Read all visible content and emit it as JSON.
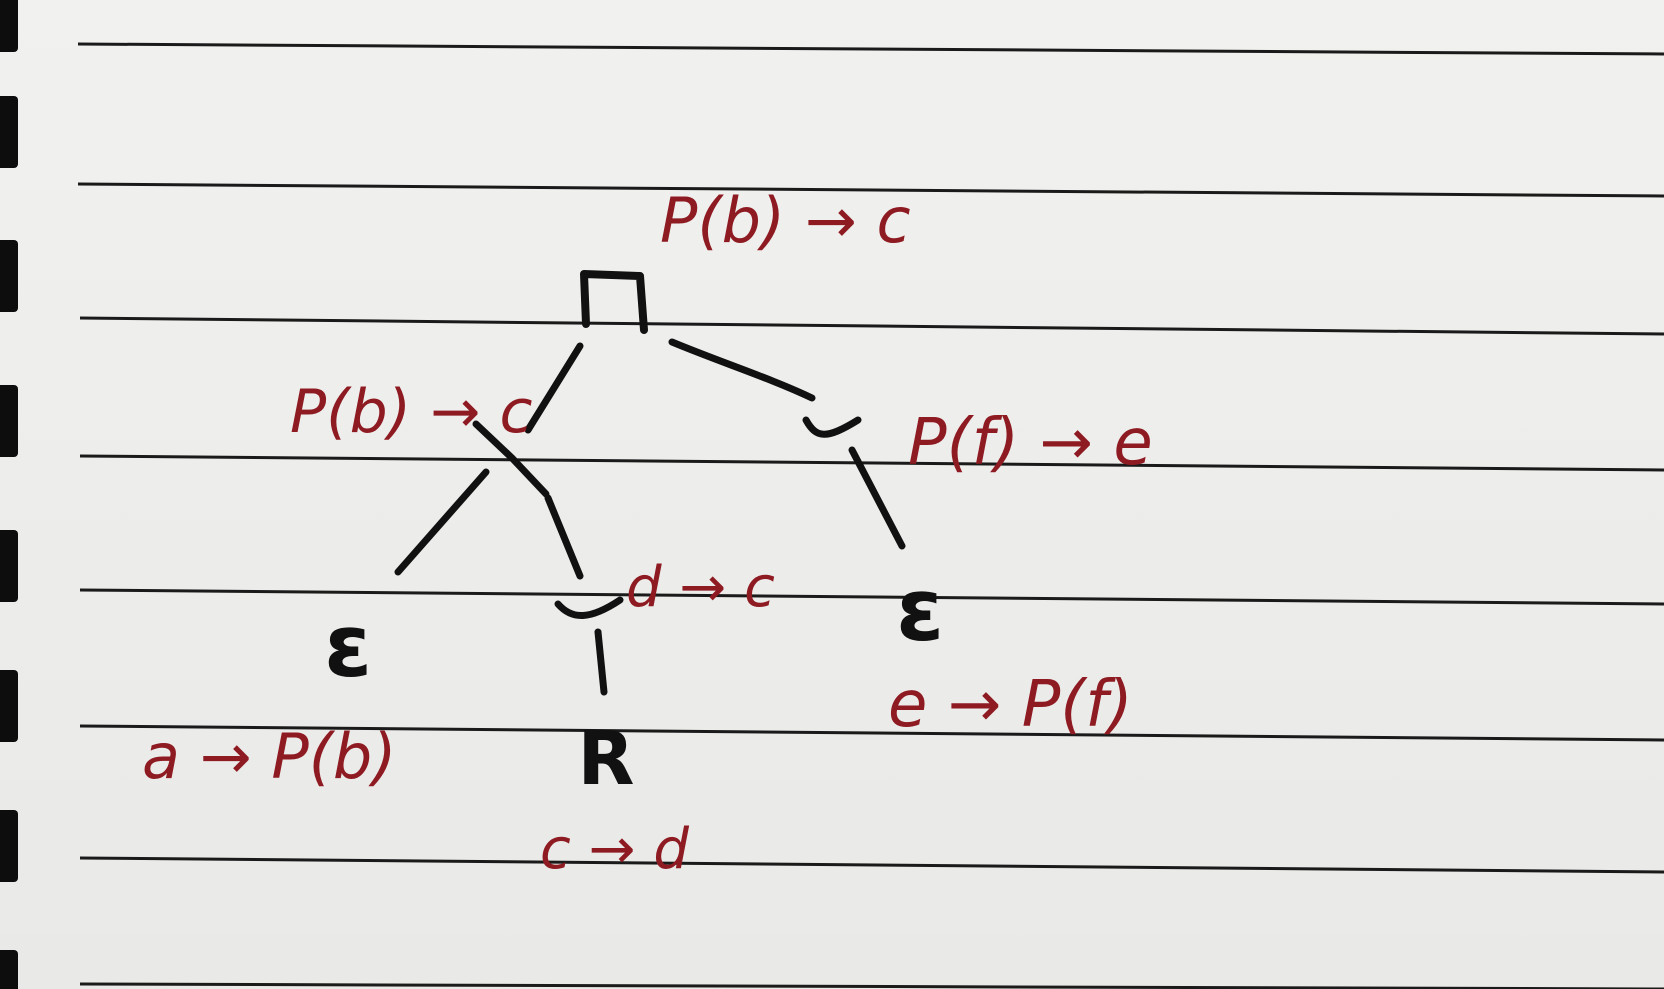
{
  "diagram": {
    "nodes": {
      "root": {
        "symbol": ""
      },
      "and_left": {
        "symbol": ""
      },
      "or_right": {
        "symbol": ""
      },
      "eps_left": {
        "symbol": "ε"
      },
      "or_mid": {
        "symbol": ""
      },
      "eps_right": {
        "symbol": "ε"
      },
      "r_node": {
        "symbol": "R"
      }
    },
    "labels": {
      "root": "P(b) → c",
      "and_left": "P(b) → c",
      "or_right": "P(f) → e",
      "eps_left": "a → P(b)",
      "or_mid": "d → c",
      "eps_right": "e → P(f)",
      "r_node": "c → d"
    }
  },
  "colors": {
    "ink_black": "#111111",
    "ink_red": "#8e1a22",
    "paper": "#eeeeec",
    "rule_line": "#1a1a1a"
  }
}
